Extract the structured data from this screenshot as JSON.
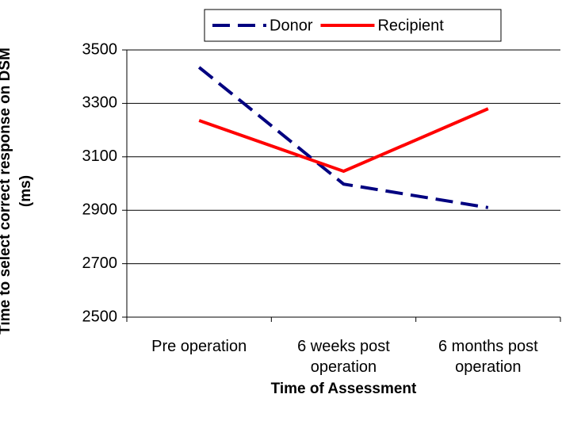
{
  "chart_data": {
    "type": "line",
    "x_label": "Time of Assessment",
    "y_label": "Time to select correct response on DSM (ms)",
    "categories": [
      "Pre operation",
      "6 weeks post operation",
      "6 months post operation"
    ],
    "series": [
      {
        "name": "Donor",
        "color": "#000080",
        "dash": true,
        "values": [
          3435,
          2998,
          2910
        ]
      },
      {
        "name": "Recipient",
        "color": "#ff0000",
        "dash": false,
        "values": [
          3236,
          3046,
          3280
        ]
      }
    ],
    "ylim": [
      2500,
      3500
    ],
    "yticks": [
      2500,
      2700,
      2900,
      3100,
      3300,
      3500
    ],
    "grid": true,
    "legend": "top"
  }
}
